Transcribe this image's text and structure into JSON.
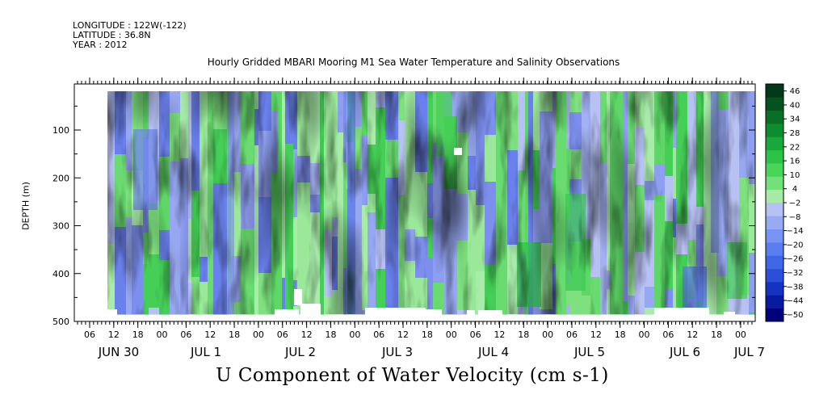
{
  "meta": {
    "longitude": "LONGITUDE : 122W(-122)",
    "latitude": "LATITUDE : 36.8N",
    "year": "YEAR : 2012"
  },
  "chart_data": {
    "type": "heatmap",
    "title": "Hourly Gridded MBARI Mooring M1 Sea Water Temperature and Salinity Observations",
    "variable_label": "U Component of Water Velocity (cm s-1)",
    "ylabel": "DEPTH (m)",
    "ylim": [
      500,
      0
    ],
    "y_ticks": [
      100,
      200,
      300,
      400,
      500
    ],
    "x_hour_ticks": [
      "06",
      "12",
      "18",
      "00",
      "06",
      "12",
      "18",
      "00",
      "06",
      "12",
      "18",
      "00",
      "06",
      "12",
      "18",
      "00",
      "06",
      "12",
      "18",
      "00",
      "06",
      "12",
      "18",
      "00",
      "06",
      "12",
      "18",
      "00",
      "06",
      "12",
      "18",
      "00",
      "06",
      "12",
      "18",
      "00"
    ],
    "x_day_labels": [
      "JUN 30",
      "JUL  1",
      "JUL  2",
      "JUL  3",
      "JUL  4",
      "JUL  5",
      "JUL  6",
      "JUL 7"
    ],
    "colorbar": {
      "levels": [
        -50,
        -44,
        -38,
        -32,
        -26,
        -20,
        -14,
        -8,
        -2,
        4,
        10,
        16,
        22,
        28,
        34,
        40,
        46
      ],
      "colors": [
        "#00007a",
        "#0a1aa0",
        "#1533c0",
        "#2a4fd8",
        "#3f66e6",
        "#5a7ef0",
        "#7894f4",
        "#97aaf4",
        "#b5c0f4",
        "#a6eaa6",
        "#74e07a",
        "#49d45a",
        "#2cc347",
        "#19a83a",
        "#0e8c30",
        "#086f27",
        "#04521d",
        "#02391a"
      ]
    },
    "grid": false
  }
}
